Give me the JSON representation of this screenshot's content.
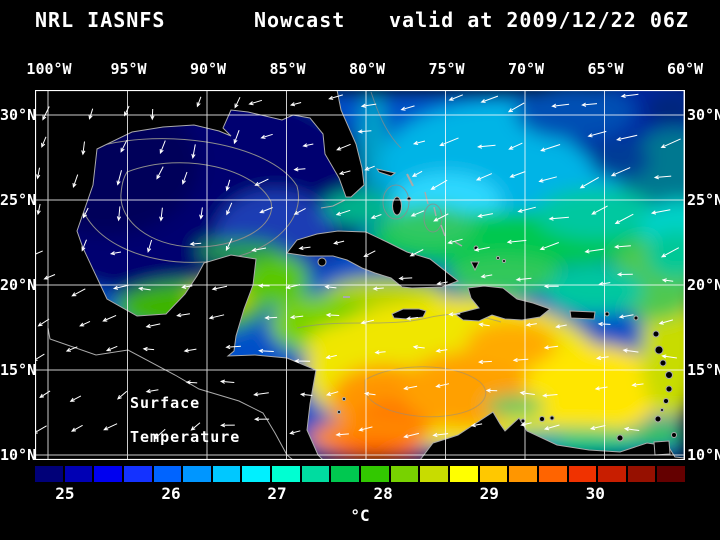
{
  "title": {
    "model": "NRL IASNFS",
    "product": "Nowcast",
    "valid_time": "valid at 2009/12/22 06Z"
  },
  "axes": {
    "lon_labels": [
      "100°W",
      "95°W",
      "90°W",
      "85°W",
      "80°W",
      "75°W",
      "70°W",
      "65°W",
      "60°W"
    ],
    "lat_labels": [
      "30°N",
      "25°N",
      "20°N",
      "15°N",
      "10°N"
    ]
  },
  "annotation": {
    "line1": "Surface",
    "line2": "Temperature"
  },
  "colorbar": {
    "unit": "°C",
    "tick_labels": [
      "25",
      "26",
      "27",
      "28",
      "29",
      "30"
    ],
    "colors": [
      "#000078",
      "#0000b4",
      "#0000f0",
      "#1432ff",
      "#0064ff",
      "#0096ff",
      "#00c8ff",
      "#00f0ff",
      "#00ffd2",
      "#00dca0",
      "#00c850",
      "#32c800",
      "#78d200",
      "#c8dc00",
      "#ffff00",
      "#ffc800",
      "#ff9600",
      "#ff6400",
      "#f03200",
      "#c81e00",
      "#961000",
      "#640000"
    ]
  },
  "chart_data": {
    "type": "heatmap",
    "title": "NRL IASNFS Nowcast valid at 2009/12/22 06Z",
    "variable": "Sea Surface Temperature",
    "unit": "°C",
    "lon_range_deg_w": [
      100,
      60
    ],
    "lat_range_deg_n": [
      10,
      30
    ],
    "grid_interval_deg": 5,
    "color_scale_ticks": [
      25,
      26,
      27,
      28,
      29,
      30
    ],
    "approx_regional_values_c": {
      "gulf_of_mexico": 25.0,
      "northeast_atlantic_corner": 25.5,
      "central_atlantic_24n": 26.5,
      "bahamas_florida_straits": 27.0,
      "northwest_caribbean": 28.0,
      "central_caribbean": 28.5,
      "southwest_caribbean_max": 29.0,
      "venezuela_coast": 27.5
    },
    "overlays": [
      "wind vectors (white arrows)",
      "gray bathymetry contours",
      "5-degree lat/lon grid",
      "black land mask with gray coastlines"
    ]
  }
}
